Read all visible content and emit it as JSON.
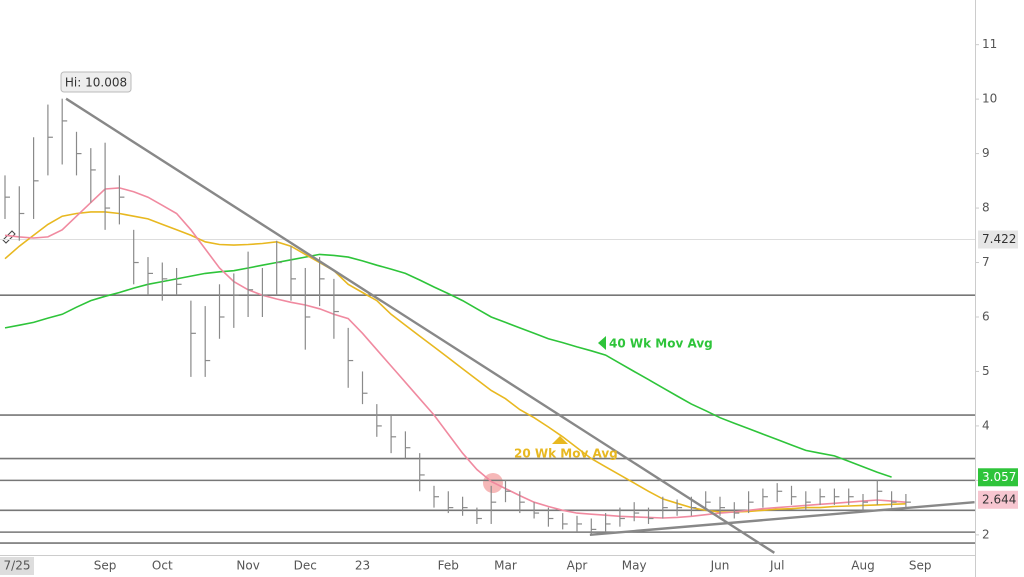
{
  "chart_data": {
    "type": "ohlc",
    "categories": [
      "7/25",
      null,
      null,
      null,
      null,
      null,
      null,
      "Sep",
      null,
      null,
      null,
      "Oct",
      null,
      null,
      null,
      null,
      null,
      "Nov",
      null,
      null,
      null,
      "Dec",
      null,
      null,
      null,
      "23",
      null,
      null,
      null,
      null,
      null,
      "Feb",
      null,
      null,
      null,
      "Mar",
      null,
      null,
      null,
      null,
      "Apr",
      null,
      null,
      null,
      "May",
      null,
      null,
      null,
      null,
      null,
      "Jun",
      null,
      null,
      null,
      "Jul",
      null,
      null,
      null,
      null,
      null,
      "Aug",
      null,
      null,
      null,
      "Sep"
    ],
    "high": [
      8.6,
      8.4,
      9.3,
      9.9,
      10.008,
      9.4,
      9.1,
      9.2,
      8.6,
      7.6,
      7.1,
      7.0,
      6.9,
      6.3,
      6.2,
      6.6,
      6.8,
      7.2,
      6.9,
      7.4,
      7.3,
      6.9,
      7.1,
      6.7,
      5.8,
      5.0,
      4.4,
      4.2,
      3.9,
      3.5,
      2.9,
      2.8,
      2.7,
      2.5,
      2.9,
      3.0,
      2.8,
      2.6,
      2.5,
      2.4,
      2.35,
      2.3,
      2.4,
      2.5,
      2.6,
      2.5,
      2.7,
      2.65,
      2.7,
      2.8,
      2.7,
      2.6,
      2.8,
      2.85,
      2.95,
      2.9,
      2.8,
      2.85,
      2.85,
      2.85,
      2.75,
      3.0,
      2.8,
      2.75,
      null
    ],
    "low": [
      7.8,
      7.4,
      7.8,
      8.6,
      8.8,
      8.6,
      8.1,
      7.6,
      7.7,
      6.6,
      6.4,
      6.3,
      6.4,
      4.9,
      4.9,
      5.6,
      5.8,
      6.0,
      6.0,
      6.4,
      6.3,
      5.4,
      6.2,
      5.6,
      4.7,
      4.4,
      3.8,
      3.5,
      3.4,
      2.8,
      2.5,
      2.4,
      2.35,
      2.2,
      2.2,
      2.6,
      2.4,
      2.3,
      2.15,
      2.1,
      2.05,
      2.0,
      2.05,
      2.15,
      2.25,
      2.2,
      2.3,
      2.35,
      2.35,
      2.45,
      2.35,
      2.3,
      2.4,
      2.5,
      2.6,
      2.55,
      2.45,
      2.55,
      2.55,
      2.55,
      2.45,
      2.55,
      2.5,
      2.5,
      null
    ],
    "close": [
      8.2,
      7.9,
      8.5,
      9.3,
      9.6,
      9.0,
      8.7,
      8.0,
      8.2,
      7.0,
      6.8,
      6.7,
      6.6,
      5.7,
      5.2,
      6.0,
      6.4,
      6.5,
      6.4,
      7.0,
      6.7,
      6.0,
      6.7,
      6.1,
      5.2,
      4.6,
      4.0,
      3.8,
      3.6,
      3.1,
      2.7,
      2.5,
      2.5,
      2.3,
      2.6,
      2.8,
      2.6,
      2.4,
      2.3,
      2.2,
      2.2,
      2.1,
      2.2,
      2.3,
      2.4,
      2.3,
      2.5,
      2.5,
      2.5,
      2.6,
      2.5,
      2.4,
      2.6,
      2.7,
      2.8,
      2.7,
      2.6,
      2.7,
      2.7,
      2.7,
      2.6,
      2.8,
      2.6,
      2.6,
      null
    ],
    "bar_color": "#8a8a8a",
    "series": [
      {
        "color": "#2ec43a",
        "values": [
          5.8,
          5.85,
          5.9,
          5.98,
          6.05,
          6.18,
          6.3,
          6.38,
          6.45,
          6.53,
          6.6,
          6.65,
          6.7,
          6.75,
          6.8,
          6.83,
          6.85,
          6.9,
          6.95,
          7.0,
          7.05,
          7.1,
          7.15,
          7.13,
          7.1,
          7.03,
          6.95,
          6.88,
          6.8,
          6.68,
          6.55,
          6.43,
          6.3,
          6.15,
          6.0,
          5.9,
          5.8,
          5.7,
          5.6,
          5.53,
          5.45,
          5.38,
          5.3,
          5.15,
          5.0,
          4.85,
          4.7,
          4.55,
          4.4,
          4.28,
          4.15,
          4.05,
          3.95,
          3.85,
          3.75,
          3.65,
          3.55,
          3.5,
          3.45,
          3.35,
          3.25,
          3.15,
          3.06,
          null,
          null
        ]
      },
      {
        "color": "#e8b820",
        "values": [
          7.07,
          7.3,
          7.5,
          7.7,
          7.85,
          7.9,
          7.93,
          7.93,
          7.9,
          7.85,
          7.8,
          7.7,
          7.6,
          7.5,
          7.38,
          7.33,
          7.32,
          7.33,
          7.35,
          7.38,
          7.3,
          7.15,
          7.0,
          6.85,
          6.6,
          6.45,
          6.3,
          6.05,
          5.85,
          5.65,
          5.45,
          5.25,
          5.05,
          4.85,
          4.65,
          4.5,
          4.3,
          4.15,
          3.98,
          3.8,
          3.6,
          3.4,
          3.25,
          3.1,
          2.95,
          2.8,
          2.66,
          2.58,
          2.5,
          2.45,
          2.42,
          2.42,
          2.43,
          2.45,
          2.47,
          2.48,
          2.5,
          2.5,
          2.52,
          2.53,
          2.54,
          2.55,
          2.56,
          2.57,
          null
        ]
      },
      {
        "color": "#f08aa0",
        "values": [
          7.5,
          7.47,
          7.45,
          7.47,
          7.6,
          7.85,
          8.1,
          8.35,
          8.37,
          8.3,
          8.2,
          8.05,
          7.9,
          7.6,
          7.25,
          6.9,
          6.65,
          6.5,
          6.4,
          6.33,
          6.27,
          6.22,
          6.15,
          6.05,
          5.97,
          5.7,
          5.4,
          5.1,
          4.8,
          4.5,
          4.2,
          3.85,
          3.5,
          3.2,
          2.98,
          2.85,
          2.72,
          2.6,
          2.52,
          2.45,
          2.4,
          2.38,
          2.36,
          2.34,
          2.33,
          2.32,
          2.31,
          2.32,
          2.34,
          2.37,
          2.4,
          2.42,
          2.45,
          2.48,
          2.5,
          2.52,
          2.54,
          2.56,
          2.58,
          2.6,
          2.62,
          2.64,
          2.62,
          2.6,
          null
        ]
      }
    ],
    "ylim": [
      1.63,
      11.82
    ],
    "yticks": [
      2,
      3,
      4,
      5,
      6,
      7,
      8,
      9,
      10,
      11
    ],
    "levels": [
      6.4,
      4.2,
      3.4,
      3.0,
      2.45,
      2.05,
      1.85
    ],
    "trendlines": [
      {
        "x": [
          4.27,
          53.8
        ],
        "y": [
          10.008,
          1.67
        ]
      },
      {
        "x": [
          40.9,
          67.8
        ],
        "y": [
          2.0,
          2.6
        ]
      }
    ],
    "price_labels": [
      {
        "value": 7.422,
        "color": "#e6e6e6"
      },
      {
        "value": 3.057,
        "color": "#2ec43a"
      },
      {
        "value": 2.644,
        "color": "#f7c6d0"
      }
    ],
    "annotations": [
      "Hi: 10.008",
      "40 Wk Mov Avg",
      "20 Wk Mov Avg"
    ]
  }
}
